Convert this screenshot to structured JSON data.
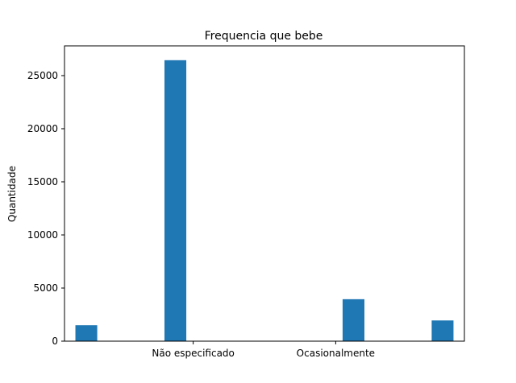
{
  "chart_data": {
    "type": "bar",
    "title": "Frequencia que bebe",
    "xlabel": "",
    "ylabel": "Quantidade",
    "bars": [
      {
        "x": 0.0,
        "value": 1500
      },
      {
        "x": 1.0,
        "value": 26450
      },
      {
        "x": 3.0,
        "value": 3950
      },
      {
        "x": 4.0,
        "value": 1950
      }
    ],
    "xticks": [
      {
        "x": 1.2,
        "label": "Não especificado"
      },
      {
        "x": 2.8,
        "label": "Ocasionalmente"
      }
    ],
    "yticks": [
      0,
      5000,
      10000,
      15000,
      20000,
      25000
    ],
    "ylim": [
      0,
      27800
    ],
    "xlim": [
      -0.245,
      4.245
    ],
    "bar_color": "#1f77b4",
    "grid": false,
    "legend": "none"
  }
}
